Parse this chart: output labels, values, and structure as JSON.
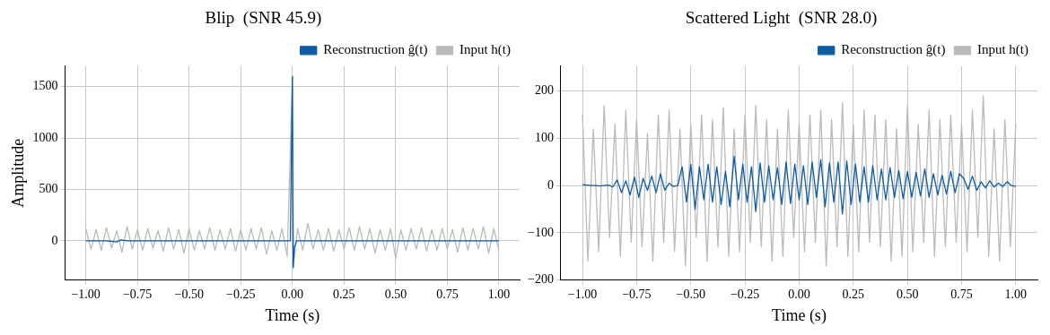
{
  "chart_data": [
    {
      "type": "line",
      "title": "Blip  (SNR 45.9)",
      "xlabel": "Time (s)",
      "ylabel": "Amplitude",
      "xlim": [
        -1.1,
        1.1
      ],
      "ylim": [
        -380,
        1700
      ],
      "xticks": [
        {
          "value": -1,
          "label": "−1.00"
        },
        {
          "value": -0.75,
          "label": "−0.75"
        },
        {
          "value": -0.5,
          "label": "−0.50"
        },
        {
          "value": -0.25,
          "label": "−0.25"
        },
        {
          "value": 0,
          "label": "0.00"
        },
        {
          "value": 0.25,
          "label": "0.25"
        },
        {
          "value": 0.5,
          "label": "0.50"
        },
        {
          "value": 0.75,
          "label": "0.75"
        },
        {
          "value": 1,
          "label": "1.00"
        }
      ],
      "yticks": [
        0,
        500,
        1000,
        1500
      ],
      "grid": true,
      "legend": "top right",
      "series": [
        {
          "name": "Input h(t)",
          "color": "#bbbbbb",
          "x": [
            -1.0,
            -0.975,
            -0.95,
            -0.925,
            -0.9,
            -0.875,
            -0.85,
            -0.825,
            -0.8,
            -0.775,
            -0.75,
            -0.725,
            -0.7,
            -0.675,
            -0.65,
            -0.625,
            -0.6,
            -0.575,
            -0.55,
            -0.525,
            -0.5,
            -0.475,
            -0.45,
            -0.425,
            -0.4,
            -0.375,
            -0.35,
            -0.325,
            -0.3,
            -0.275,
            -0.25,
            -0.225,
            -0.2,
            -0.175,
            -0.15,
            -0.125,
            -0.1,
            -0.075,
            -0.05,
            -0.025,
            0.0,
            0.004,
            0.025,
            0.05,
            0.075,
            0.1,
            0.125,
            0.15,
            0.175,
            0.2,
            0.225,
            0.25,
            0.275,
            0.3,
            0.325,
            0.35,
            0.375,
            0.4,
            0.425,
            0.45,
            0.475,
            0.5,
            0.525,
            0.55,
            0.575,
            0.6,
            0.625,
            0.65,
            0.675,
            0.7,
            0.725,
            0.75,
            0.775,
            0.8,
            0.825,
            0.85,
            0.875,
            0.9,
            0.925,
            0.95,
            0.975,
            1.0
          ],
          "values": [
            120,
            -80,
            110,
            -90,
            130,
            -70,
            100,
            -110,
            140,
            -80,
            110,
            -90,
            120,
            -70,
            100,
            -100,
            130,
            -80,
            110,
            -120,
            120,
            -90,
            100,
            -80,
            130,
            -90,
            110,
            -80,
            120,
            -100,
            110,
            -90,
            120,
            -80,
            130,
            -130,
            100,
            -90,
            120,
            -150,
            1600,
            -260,
            120,
            -90,
            170,
            -80,
            110,
            -90,
            120,
            -100,
            110,
            -80,
            130,
            -90,
            140,
            -80,
            120,
            -120,
            110,
            -90,
            120,
            -170,
            110,
            -90,
            120,
            -80,
            130,
            -100,
            110,
            -90,
            120,
            -80,
            110,
            -110,
            130,
            -90,
            120,
            -80,
            140,
            -120,
            120,
            -100
          ]
        },
        {
          "name": "Reconstruction ĝ(t)",
          "color": "#0c5da5",
          "x": [
            -1.0,
            -0.9,
            -0.85,
            -0.83,
            -0.8,
            -0.7,
            -0.5,
            -0.2,
            -0.01,
            0.0,
            0.004,
            0.01,
            0.02,
            0.2,
            0.5,
            0.8,
            1.0
          ],
          "values": [
            0,
            0,
            -10,
            10,
            0,
            0,
            0,
            0,
            0,
            1600,
            -260,
            -60,
            0,
            0,
            0,
            0,
            0
          ]
        }
      ]
    },
    {
      "type": "line",
      "title": "Scattered Light  (SNR 28.0)",
      "xlabel": "Time (s)",
      "xlim": [
        -1.1,
        1.1
      ],
      "ylim": [
        -200,
        253
      ],
      "xticks": [
        {
          "value": -1,
          "label": "−1.00"
        },
        {
          "value": -0.75,
          "label": "−0.75"
        },
        {
          "value": -0.5,
          "label": "−0.50"
        },
        {
          "value": -0.25,
          "label": "−0.25"
        },
        {
          "value": 0,
          "label": "0.00"
        },
        {
          "value": 0.25,
          "label": "0.25"
        },
        {
          "value": 0.5,
          "label": "0.50"
        },
        {
          "value": 0.75,
          "label": "0.75"
        },
        {
          "value": 1,
          "label": "1.00"
        }
      ],
      "yticks": [
        {
          "value": -200,
          "label": "−200"
        },
        {
          "value": -100,
          "label": "−100"
        },
        0,
        100,
        200
      ],
      "grid": true,
      "legend": "top right",
      "series": [
        {
          "name": "Input h(t)",
          "color": "#bbbbbb",
          "x": [
            -1.0,
            -0.975,
            -0.95,
            -0.925,
            -0.9,
            -0.875,
            -0.85,
            -0.825,
            -0.8,
            -0.775,
            -0.75,
            -0.725,
            -0.7,
            -0.675,
            -0.65,
            -0.625,
            -0.6,
            -0.575,
            -0.55,
            -0.525,
            -0.5,
            -0.475,
            -0.45,
            -0.425,
            -0.4,
            -0.375,
            -0.35,
            -0.325,
            -0.3,
            -0.275,
            -0.25,
            -0.225,
            -0.2,
            -0.175,
            -0.15,
            -0.125,
            -0.1,
            -0.075,
            -0.05,
            -0.025,
            0.0,
            0.025,
            0.05,
            0.075,
            0.1,
            0.125,
            0.15,
            0.175,
            0.2,
            0.225,
            0.25,
            0.275,
            0.3,
            0.325,
            0.35,
            0.375,
            0.4,
            0.425,
            0.45,
            0.475,
            0.5,
            0.525,
            0.55,
            0.575,
            0.6,
            0.625,
            0.65,
            0.675,
            0.7,
            0.725,
            0.75,
            0.775,
            0.8,
            0.825,
            0.85,
            0.875,
            0.9,
            0.925,
            0.95,
            0.975,
            1.0
          ],
          "values": [
            150,
            -160,
            120,
            -140,
            170,
            -110,
            130,
            -150,
            160,
            -120,
            140,
            -130,
            110,
            -160,
            150,
            -120,
            160,
            -140,
            120,
            -170,
            130,
            -110,
            150,
            -160,
            140,
            -130,
            165,
            -150,
            120,
            -140,
            150,
            -120,
            170,
            -130,
            140,
            -160,
            120,
            -150,
            160,
            -110,
            130,
            -140,
            150,
            -120,
            160,
            -170,
            140,
            -130,
            175,
            -150,
            130,
            -140,
            160,
            -120,
            150,
            -130,
            140,
            -160,
            120,
            -150,
            170,
            -140,
            130,
            -120,
            160,
            -150,
            140,
            -130,
            150,
            -120,
            130,
            -140,
            160,
            -110,
            190,
            -150,
            120,
            -160,
            140,
            -130,
            130
          ]
        },
        {
          "name": "Reconstruction ĝ(t)",
          "color": "#0c5da5",
          "x": [
            -1.0,
            -0.98,
            -0.96,
            -0.94,
            -0.92,
            -0.9,
            -0.88,
            -0.86,
            -0.84,
            -0.82,
            -0.8,
            -0.78,
            -0.76,
            -0.74,
            -0.72,
            -0.7,
            -0.68,
            -0.66,
            -0.64,
            -0.62,
            -0.6,
            -0.58,
            -0.56,
            -0.54,
            -0.52,
            -0.5,
            -0.48,
            -0.46,
            -0.44,
            -0.42,
            -0.4,
            -0.38,
            -0.36,
            -0.34,
            -0.32,
            -0.3,
            -0.28,
            -0.26,
            -0.24,
            -0.22,
            -0.2,
            -0.18,
            -0.16,
            -0.14,
            -0.12,
            -0.1,
            -0.08,
            -0.06,
            -0.04,
            -0.02,
            0.0,
            0.02,
            0.04,
            0.06,
            0.08,
            0.1,
            0.12,
            0.14,
            0.16,
            0.18,
            0.2,
            0.22,
            0.24,
            0.26,
            0.28,
            0.3,
            0.32,
            0.34,
            0.36,
            0.38,
            0.4,
            0.42,
            0.44,
            0.46,
            0.48,
            0.5,
            0.52,
            0.54,
            0.56,
            0.58,
            0.6,
            0.62,
            0.64,
            0.66,
            0.68,
            0.7,
            0.72,
            0.74,
            0.76,
            0.78,
            0.8,
            0.82,
            0.84,
            0.86,
            0.88,
            0.9,
            0.92,
            0.94,
            0.96,
            0.98,
            1.0
          ],
          "values": [
            2,
            1,
            0,
            0,
            -1,
            0,
            1,
            -3,
            12,
            -15,
            10,
            -20,
            18,
            -25,
            15,
            -10,
            20,
            -15,
            25,
            -10,
            5,
            -2,
            0,
            40,
            -35,
            45,
            -50,
            40,
            -30,
            45,
            -35,
            40,
            -40,
            30,
            -45,
            62,
            -30,
            45,
            -35,
            40,
            -55,
            48,
            -35,
            42,
            -30,
            38,
            -40,
            50,
            -38,
            45,
            -30,
            42,
            -40,
            50,
            -25,
            55,
            -45,
            48,
            -35,
            50,
            -60,
            52,
            -40,
            45,
            -35,
            40,
            -35,
            42,
            -30,
            35,
            -30,
            38,
            -25,
            32,
            -28,
            30,
            -25,
            28,
            -22,
            35,
            -25,
            25,
            -20,
            22,
            -18,
            30,
            -15,
            25,
            15,
            -8,
            20,
            -10,
            8,
            -5,
            10,
            -3,
            5,
            -2,
            8,
            0,
            -2
          ]
        }
      ]
    }
  ]
}
